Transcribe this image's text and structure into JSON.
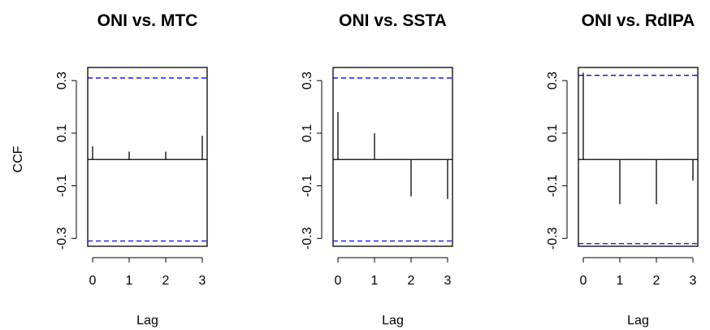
{
  "figure": {
    "ylabel": "CCF",
    "xlabel": "Lag"
  },
  "chart_data": [
    {
      "type": "bar",
      "title": "ONI vs. MTC",
      "xlabel": "Lag",
      "ylabel": "CCF",
      "x": [
        0,
        1,
        2,
        3
      ],
      "values": [
        0.05,
        0.03,
        0.03,
        0.09
      ],
      "confidence_limits": [
        0.31,
        -0.31
      ],
      "xlim": [
        0,
        3
      ],
      "ylim": [
        -0.33,
        0.35
      ],
      "xticks": [
        "0",
        "1",
        "2",
        "3"
      ],
      "yticks": [
        "-0.3",
        "-0.1",
        "0.1",
        "0.3"
      ],
      "grid": false
    },
    {
      "type": "bar",
      "title": "ONI vs. SSTA",
      "xlabel": "Lag",
      "ylabel": "",
      "x": [
        0,
        1,
        2,
        3
      ],
      "values": [
        0.18,
        0.1,
        -0.14,
        -0.15
      ],
      "confidence_limits": [
        0.31,
        -0.31
      ],
      "xlim": [
        0,
        3
      ],
      "ylim": [
        -0.33,
        0.35
      ],
      "xticks": [
        "0",
        "1",
        "2",
        "3"
      ],
      "yticks": [
        "-0.3",
        "-0.1",
        "0.1",
        "0.3"
      ],
      "grid": false
    },
    {
      "type": "bar",
      "title": "ONI vs. RdIPA",
      "xlabel": "Lag",
      "ylabel": "",
      "x": [
        0,
        1,
        2,
        3
      ],
      "values": [
        0.33,
        -0.17,
        -0.17,
        -0.08
      ],
      "confidence_limits": [
        0.32,
        -0.32
      ],
      "xlim": [
        0,
        3
      ],
      "ylim": [
        -0.33,
        0.35
      ],
      "xticks": [
        "0",
        "1",
        "2",
        "3"
      ],
      "yticks": [
        "-0.3",
        "-0.1",
        "0.1",
        "0.3"
      ],
      "grid": false
    }
  ],
  "colors": {
    "confidence_line": "#0000ff",
    "bars": "#000000",
    "axes": "#000000"
  }
}
